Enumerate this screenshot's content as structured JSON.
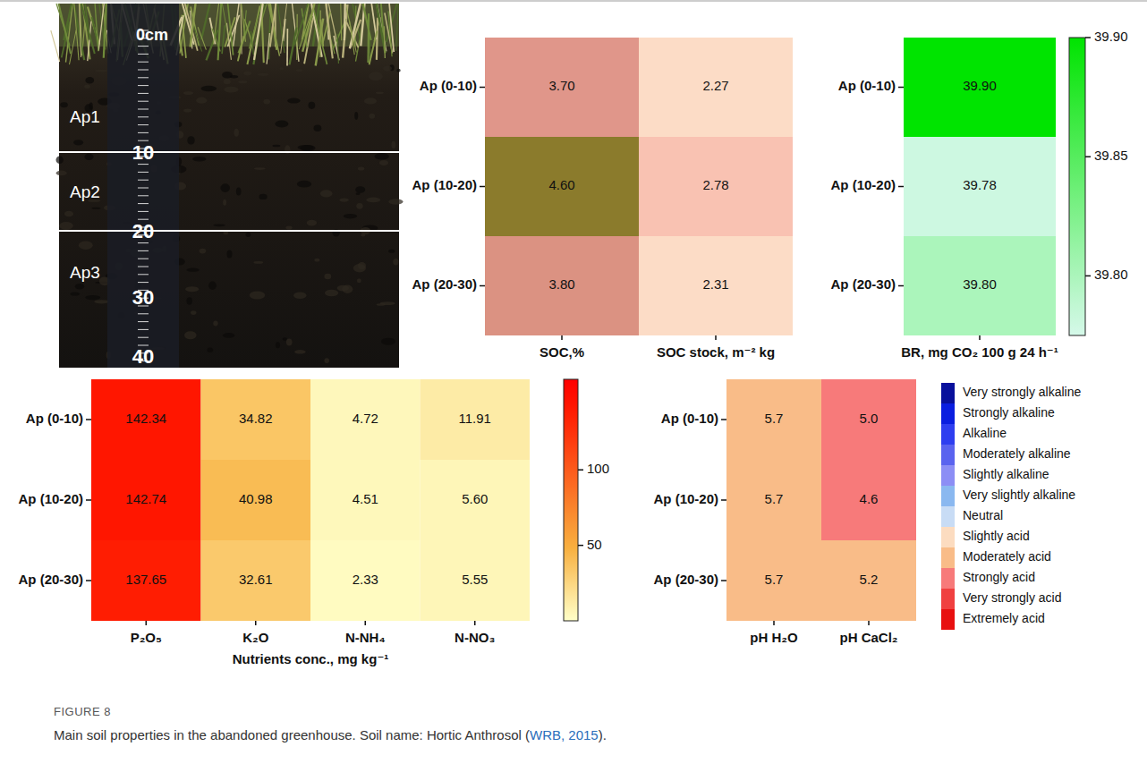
{
  "chart_data": [
    {
      "type": "heatmap",
      "y_categories": [
        "Ap (0-10)",
        "Ap (10-20)",
        "Ap (20-30)"
      ],
      "x_categories": [
        "SOC,%",
        "SOC stock, m⁻² kg"
      ],
      "cells": [
        [
          3.7,
          2.27
        ],
        [
          4.6,
          2.78
        ],
        [
          3.8,
          2.31
        ]
      ],
      "value_labels": [
        [
          "3.70",
          "2.27"
        ],
        [
          "4.60",
          "2.78"
        ],
        [
          "3.80",
          "2.31"
        ]
      ],
      "colors": [
        [
          "#e0968a",
          "#fcdcc6"
        ],
        [
          "#8b7b2c",
          "#f9c2b2"
        ],
        [
          "#db9282",
          "#fcdcc6"
        ]
      ],
      "data_labels": true
    },
    {
      "type": "heatmap",
      "y_categories": [
        "Ap (0-10)",
        "Ap (10-20)",
        "Ap (20-30)"
      ],
      "x_categories": [
        "BR, mg CO₂ 100 g 24 h⁻¹"
      ],
      "cells": [
        [
          39.9
        ],
        [
          39.78
        ],
        [
          39.8
        ]
      ],
      "value_labels": [
        [
          "39.90"
        ],
        [
          "39.78"
        ],
        [
          "39.80"
        ]
      ],
      "colorbar_lim": [
        39.775,
        39.9
      ],
      "colorbar_ticks": [
        {
          "value": 39.8,
          "label": "39.80"
        },
        39.85,
        {
          "value": 39.9,
          "label": "39.90"
        }
      ],
      "data_labels": true
    },
    {
      "type": "heatmap",
      "y_categories": [
        "Ap (0-10)",
        "Ap (10-20)",
        "Ap (20-30)"
      ],
      "x_categories": [
        "P₂O₅",
        "K₂O",
        "N-NH₄",
        "N-NO₃"
      ],
      "x_label": "Nutrients conc., mg kg⁻¹",
      "cells": [
        [
          142.34,
          34.82,
          4.72,
          11.91
        ],
        [
          142.74,
          40.98,
          4.51,
          5.6
        ],
        [
          137.65,
          32.61,
          2.33,
          5.55
        ]
      ],
      "value_labels": [
        [
          "142.34",
          "34.82",
          "4.72",
          "11.91"
        ],
        [
          "142.74",
          "40.98",
          "4.51",
          "5.60"
        ],
        [
          "137.65",
          "32.61",
          "2.33",
          "5.55"
        ]
      ],
      "colorbar_lim": [
        0,
        160
      ],
      "colorbar_ticks": [
        50,
        100
      ],
      "data_labels": true
    },
    {
      "type": "heatmap",
      "y_categories": [
        "Ap (0-10)",
        "Ap (10-20)",
        "Ap (20-30)"
      ],
      "x_categories": [
        "pH H₂O",
        "pH CaCl₂"
      ],
      "cells": [
        [
          5.7,
          5.0
        ],
        [
          5.7,
          4.6
        ],
        [
          5.7,
          5.2
        ]
      ],
      "value_labels": [
        [
          "5.7",
          "5.0"
        ],
        [
          "5.7",
          "4.6"
        ],
        [
          "5.7",
          "5.2"
        ]
      ],
      "colors": [
        [
          "#f9bc88",
          "#f77a7a"
        ],
        [
          "#f9bc88",
          "#f77a7a"
        ],
        [
          "#f9bc88",
          "#f9bc88"
        ]
      ],
      "color_classes": [
        {
          "name": "Very strongly alkaline",
          "color": "#08109c"
        },
        {
          "name": "Strongly alkaline",
          "color": "#0a1ee0"
        },
        {
          "name": "Alkaline",
          "color": "#2e3ef0"
        },
        {
          "name": "Moderately alkaline",
          "color": "#5a63ef"
        },
        {
          "name": "Slightly alkaline",
          "color": "#8c8ef5"
        },
        {
          "name": "Very slightly alkaline",
          "color": "#8ab8f0"
        },
        {
          "name": "Neutral",
          "color": "#c8dcf5"
        },
        {
          "name": "Slightly acid",
          "color": "#fcdcc0"
        },
        {
          "name": "Moderately acid",
          "color": "#f9bc88"
        },
        {
          "name": "Strongly acid",
          "color": "#f77a7a"
        },
        {
          "name": "Very strongly acid",
          "color": "#f04040"
        },
        {
          "name": "Extremely acid",
          "color": "#e81010"
        }
      ],
      "data_labels": true
    }
  ],
  "photo": {
    "ruler_labels": [
      "0cm",
      "10",
      "20",
      "30",
      "40"
    ],
    "horizon_labels": [
      "Ap1",
      "Ap2",
      "Ap3"
    ]
  },
  "caption": {
    "label": "FIGURE 8",
    "text": "Main soil properties in the abandoned greenhouse. Soil name: Hortic Anthrosol (",
    "citation": "WRB, 2015",
    "text_end": ")."
  }
}
